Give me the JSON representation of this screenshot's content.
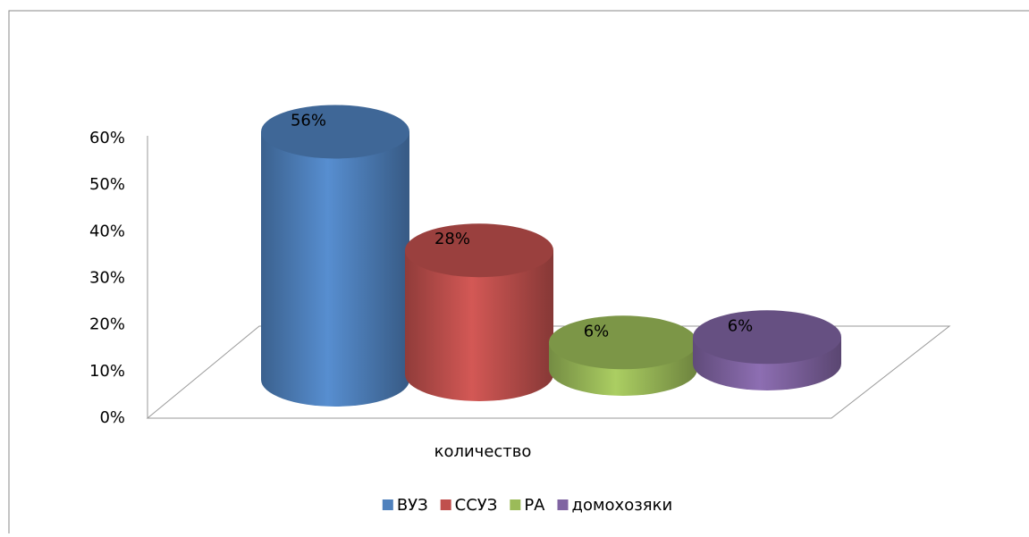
{
  "chart_data": {
    "type": "bar3d",
    "categories": [
      "количество"
    ],
    "series": [
      {
        "name": "ВУЗ",
        "color": "#4f81bd",
        "values": [
          56
        ],
        "value_labels": [
          "56%"
        ]
      },
      {
        "name": "ССУЗ",
        "color": "#c0504d",
        "values": [
          28
        ],
        "value_labels": [
          "28%"
        ]
      },
      {
        "name": "РА",
        "color": "#9bbb59",
        "values": [
          6
        ],
        "value_labels": [
          "6%"
        ]
      },
      {
        "name": "домохозяки",
        "color": "#8064a2",
        "values": [
          6
        ],
        "value_labels": [
          "6%"
        ]
      }
    ],
    "ylim": [
      0,
      60
    ],
    "yticks": [
      {
        "value": 0,
        "label": "0%"
      },
      {
        "value": 10,
        "label": "10%"
      },
      {
        "value": 20,
        "label": "20%"
      },
      {
        "value": 30,
        "label": "30%"
      },
      {
        "value": 40,
        "label": "40%"
      },
      {
        "value": 50,
        "label": "50%"
      },
      {
        "value": 60,
        "label": "60%"
      }
    ],
    "grid": false,
    "legend": "bottom"
  }
}
